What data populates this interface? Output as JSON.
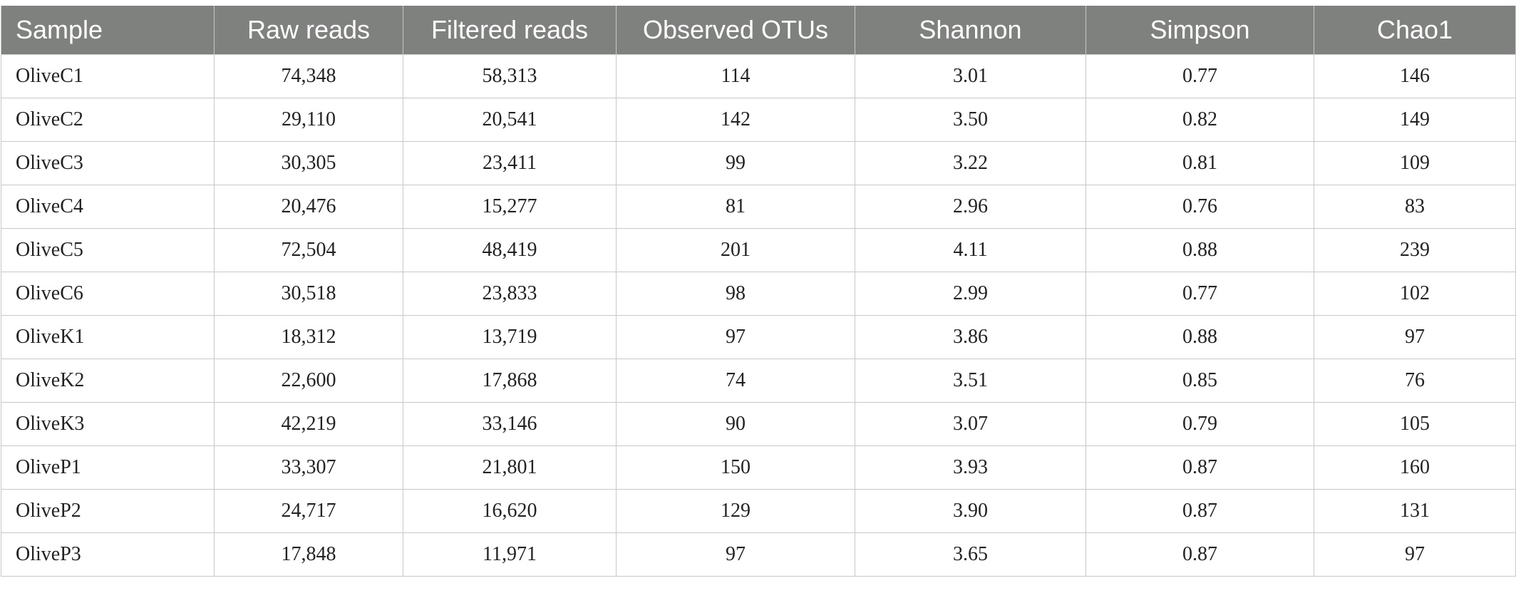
{
  "table": {
    "headers": [
      "Sample",
      "Raw reads",
      "Filtered reads",
      "Observed OTUs",
      "Shannon",
      "Simpson",
      "Chao1"
    ],
    "rows": [
      [
        "OliveC1",
        "74,348",
        "58,313",
        "114",
        "3.01",
        "0.77",
        "146"
      ],
      [
        "OliveC2",
        "29,110",
        "20,541",
        "142",
        "3.50",
        "0.82",
        "149"
      ],
      [
        "OliveC3",
        "30,305",
        "23,411",
        "99",
        "3.22",
        "0.81",
        "109"
      ],
      [
        "OliveC4",
        "20,476",
        "15,277",
        "81",
        "2.96",
        "0.76",
        "83"
      ],
      [
        "OliveC5",
        "72,504",
        "48,419",
        "201",
        "4.11",
        "0.88",
        "239"
      ],
      [
        "OliveC6",
        "30,518",
        "23,833",
        "98",
        "2.99",
        "0.77",
        "102"
      ],
      [
        "OliveK1",
        "18,312",
        "13,719",
        "97",
        "3.86",
        "0.88",
        "97"
      ],
      [
        "OliveK2",
        "22,600",
        "17,868",
        "74",
        "3.51",
        "0.85",
        "76"
      ],
      [
        "OliveK3",
        "42,219",
        "33,146",
        "90",
        "3.07",
        "0.79",
        "105"
      ],
      [
        "OliveP1",
        "33,307",
        "21,801",
        "150",
        "3.93",
        "0.87",
        "160"
      ],
      [
        "OliveP2",
        "24,717",
        "16,620",
        "129",
        "3.90",
        "0.87",
        "131"
      ],
      [
        "OliveP3",
        "17,848",
        "11,971",
        "97",
        "3.65",
        "0.87",
        "97"
      ]
    ]
  },
  "colors": {
    "header_bg": "#7f817f",
    "header_text": "#ffffff",
    "grid": "#c8c8c8"
  }
}
